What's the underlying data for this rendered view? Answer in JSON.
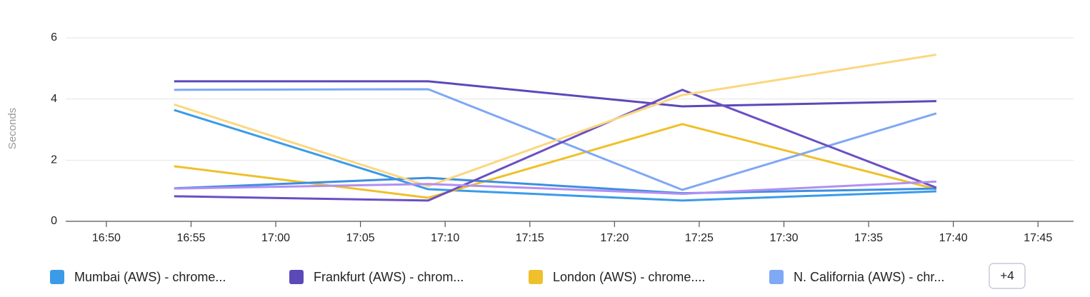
{
  "chart_data": {
    "type": "line",
    "y_label": "Seconds",
    "x": [
      "16:54",
      "17:09",
      "17:24",
      "17:39"
    ],
    "xlim": [
      "16:47:36",
      "17:47:06"
    ],
    "xticks": [
      "16:50",
      "16:55",
      "17:00",
      "17:05",
      "17:10",
      "17:15",
      "17:20",
      "17:25",
      "17:30",
      "17:35",
      "17:40",
      "17:45"
    ],
    "ylim": [
      0,
      6
    ],
    "yticks": [
      0,
      2,
      4,
      6
    ],
    "grid": true,
    "legend_more": "+4",
    "series": [
      {
        "name": "Mumbai (AWS) - chrome...",
        "color": "#3b9be8",
        "values": [
          3.64,
          1.05,
          0.68,
          0.98
        ]
      },
      {
        "name": "Frankfurt (AWS) - chrom...",
        "color": "#5b49b8",
        "values": [
          4.58,
          4.58,
          3.76,
          3.93
        ]
      },
      {
        "name": "London (AWS) - chrome....",
        "color": "#efc02b",
        "values": [
          1.8,
          0.77,
          3.18,
          1.05
        ]
      },
      {
        "name": "N. California (AWS) - chr...",
        "color": "#7fa8f5",
        "values": [
          4.3,
          4.32,
          1.03,
          3.53
        ]
      },
      {
        "color": "#3d8fe0",
        "values": [
          1.08,
          1.42,
          0.92,
          1.07
        ]
      },
      {
        "color": "#6a4fc4",
        "values": [
          0.82,
          0.68,
          4.3,
          1.1
        ]
      },
      {
        "color": "#fbd77f",
        "values": [
          3.82,
          1.15,
          4.13,
          5.45
        ]
      },
      {
        "color": "#b28ff2",
        "values": [
          1.07,
          1.22,
          0.9,
          1.3
        ]
      }
    ]
  }
}
